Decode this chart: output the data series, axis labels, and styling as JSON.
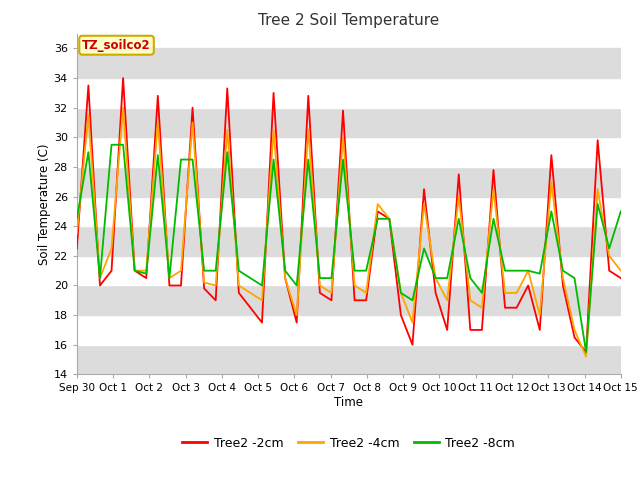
{
  "title": "Tree 2 Soil Temperature",
  "xlabel": "Time",
  "ylabel": "Soil Temperature (C)",
  "annotation": "TZ_soilco2",
  "ylim": [
    14,
    37
  ],
  "yticks": [
    14,
    16,
    18,
    20,
    22,
    24,
    26,
    28,
    30,
    32,
    34,
    36
  ],
  "x_labels": [
    "Sep 30",
    "Oct 1",
    "Oct 2",
    "Oct 3",
    "Oct 4",
    "Oct 5",
    "Oct 6",
    "Oct 7",
    "Oct 8",
    "Oct 9",
    "Oct 10",
    "Oct 11",
    "Oct 12",
    "Oct 13",
    "Oct 14",
    "Oct 15"
  ],
  "colors": {
    "2cm": "#FF0000",
    "4cm": "#FFA500",
    "8cm": "#00BB00",
    "bg_white": "#FFFFFF",
    "bg_gray": "#DCDCDC",
    "annotation_bg": "#FFFFCC",
    "annotation_border": "#CCAA00"
  },
  "legend": [
    {
      "label": "Tree2 -2cm",
      "color": "#FF0000"
    },
    {
      "label": "Tree2 -4cm",
      "color": "#FFA500"
    },
    {
      "label": "Tree2 -8cm",
      "color": "#00BB00"
    }
  ],
  "series_2cm": [
    22.5,
    33.5,
    20.0,
    21.0,
    34.0,
    21.0,
    20.5,
    32.8,
    20.0,
    20.0,
    32.0,
    19.8,
    19.0,
    33.3,
    19.5,
    18.5,
    17.5,
    33.0,
    20.5,
    17.5,
    32.8,
    19.5,
    19.0,
    31.8,
    19.0,
    19.0,
    25.0,
    24.5,
    18.0,
    16.0,
    26.5,
    19.5,
    17.0,
    27.5,
    17.0,
    17.0,
    27.8,
    18.5,
    18.5,
    20.0,
    17.0,
    28.8,
    20.0,
    16.5,
    15.5,
    29.8,
    21.0,
    20.5
  ],
  "series_4cm": [
    23.5,
    31.5,
    20.5,
    22.5,
    32.0,
    21.0,
    21.0,
    31.0,
    20.5,
    21.0,
    31.0,
    20.2,
    20.0,
    30.5,
    20.0,
    19.5,
    19.0,
    30.5,
    20.5,
    18.0,
    30.5,
    20.0,
    19.5,
    30.0,
    20.0,
    19.5,
    25.5,
    24.5,
    19.5,
    17.5,
    25.5,
    20.5,
    19.0,
    26.0,
    19.0,
    18.5,
    26.5,
    19.5,
    19.5,
    21.0,
    18.0,
    27.0,
    20.5,
    17.0,
    15.2,
    26.5,
    22.0,
    21.0
  ],
  "series_8cm": [
    24.5,
    29.0,
    20.5,
    29.5,
    29.5,
    21.0,
    20.8,
    28.8,
    20.5,
    28.5,
    28.5,
    21.0,
    21.0,
    29.0,
    21.0,
    20.5,
    20.0,
    28.5,
    21.0,
    20.0,
    28.5,
    20.5,
    20.5,
    28.5,
    21.0,
    21.0,
    24.5,
    24.5,
    19.5,
    19.0,
    22.5,
    20.5,
    20.5,
    24.5,
    20.5,
    19.5,
    24.5,
    21.0,
    21.0,
    21.0,
    20.8,
    25.0,
    21.0,
    20.5,
    15.5,
    25.5,
    22.5,
    25.0
  ]
}
